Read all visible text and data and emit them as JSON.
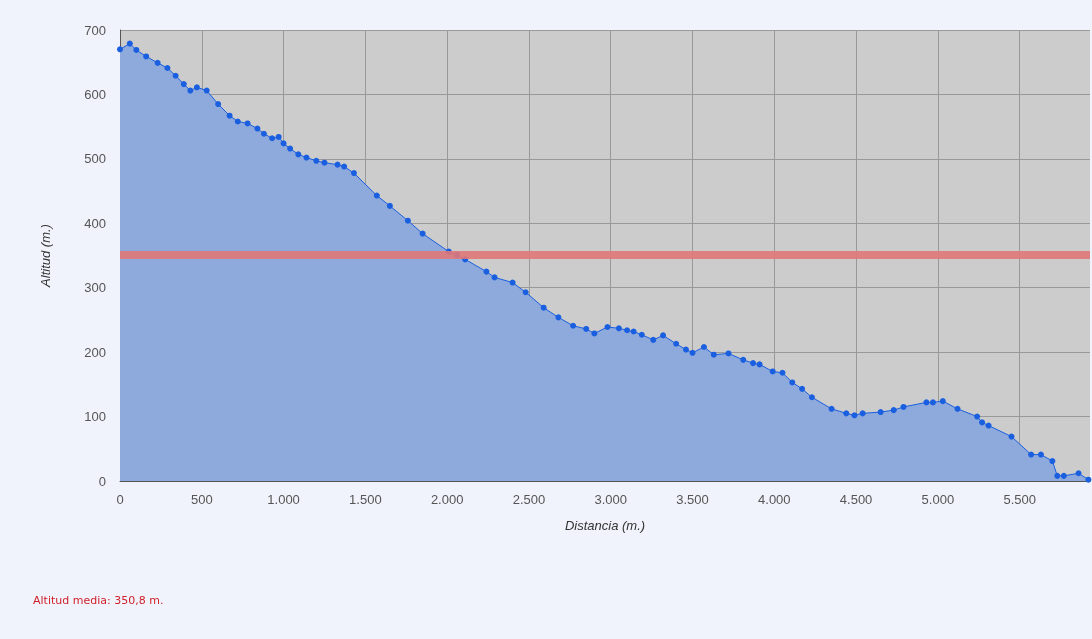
{
  "chart_data": {
    "type": "area",
    "xlabel": "Distancia (m.)",
    "ylabel": "Altitud (m.)",
    "x": [
      0,
      60,
      100,
      160,
      230,
      290,
      340,
      390,
      430,
      470,
      530,
      600,
      670,
      720,
      780,
      840,
      880,
      930,
      970,
      1000,
      1040,
      1090,
      1140,
      1200,
      1250,
      1330,
      1370,
      1430,
      1570,
      1650,
      1760,
      1850,
      2010,
      2060,
      2110,
      2240,
      2290,
      2400,
      2480,
      2590,
      2680,
      2770,
      2850,
      2900,
      2980,
      3050,
      3100,
      3140,
      3190,
      3260,
      3320,
      3400,
      3460,
      3500,
      3570,
      3630,
      3720,
      3810,
      3870,
      3910,
      3990,
      4050,
      4110,
      4170,
      4230,
      4350,
      4440,
      4490,
      4540,
      4650,
      4730,
      4790,
      4930,
      4970,
      5030,
      5120,
      5240,
      5270,
      5310,
      5450,
      5570,
      5630,
      5700,
      5730,
      5770,
      5860,
      5920
    ],
    "series": [
      {
        "color": "#1a5fe0",
        "values": [
          670,
          679,
          669,
          659,
          649,
          641,
          629,
          616,
          606,
          611,
          606,
          585,
          567,
          558,
          555,
          547,
          539,
          532,
          534,
          524,
          516,
          507,
          502,
          497,
          494,
          491,
          488,
          478,
          443,
          427,
          404,
          384,
          356,
          351,
          344,
          325,
          316,
          308,
          293,
          269,
          254,
          241,
          236,
          229,
          239,
          237,
          234,
          232,
          227,
          219,
          226,
          213,
          204,
          199,
          208,
          196,
          198,
          188,
          183,
          181,
          170,
          168,
          153,
          143,
          130,
          112,
          105,
          102,
          105,
          107,
          110,
          115,
          122,
          122,
          124,
          112,
          100,
          91,
          86,
          69,
          41,
          41,
          31,
          8,
          8,
          12,
          2
        ]
      }
    ],
    "xlim": [
      0,
      5930
    ],
    "xticks": [
      0,
      {
        "value": 500,
        "label": "500"
      },
      {
        "value": 1000,
        "label": "1.000"
      },
      {
        "value": 1500,
        "label": "1.500"
      },
      {
        "value": 2000,
        "label": "2.000"
      },
      {
        "value": 2500,
        "label": "2.500"
      },
      {
        "value": 3000,
        "label": "3.000"
      },
      {
        "value": 3500,
        "label": "3.500"
      },
      {
        "value": 4000,
        "label": "4.000"
      },
      {
        "value": 4500,
        "label": "4.500"
      },
      {
        "value": 5000,
        "label": "5.000"
      },
      {
        "value": 5500,
        "label": "5.500"
      }
    ],
    "ylim": [
      0,
      700
    ],
    "yticks": [
      0,
      100,
      200,
      300,
      400,
      500,
      600,
      700
    ],
    "ref_lines": [
      {
        "axis": "y",
        "value": 350.8,
        "color": "#e07878"
      }
    ],
    "annotations": [
      "Altitud media: 350,8 m."
    ],
    "grid": true,
    "marker": "circle",
    "line_style": "solid"
  }
}
